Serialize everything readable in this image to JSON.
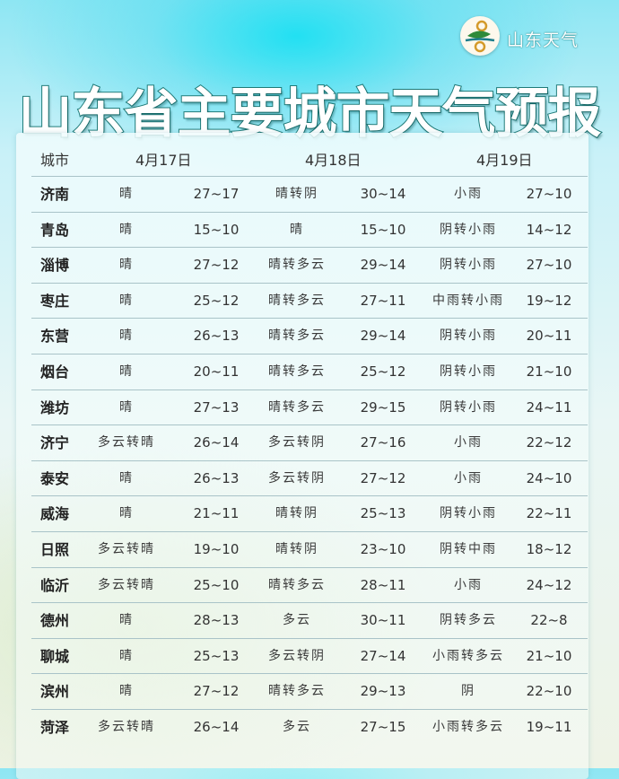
{
  "brand": {
    "name": "山东天气",
    "logo": "shandong-weather-logo"
  },
  "title": "山东省主要城市天气预报",
  "columns": {
    "city": "城市",
    "dates": [
      "4月17日",
      "4月18日",
      "4月19日"
    ]
  },
  "rows": [
    {
      "city": "济南",
      "d1": [
        "晴",
        "27~17"
      ],
      "d2": [
        "晴转阴",
        "30~14"
      ],
      "d3": [
        "小雨",
        "27~10"
      ]
    },
    {
      "city": "青岛",
      "d1": [
        "晴",
        "15~10"
      ],
      "d2": [
        "晴",
        "15~10"
      ],
      "d3": [
        "阴转小雨",
        "14~12"
      ]
    },
    {
      "city": "淄博",
      "d1": [
        "晴",
        "27~12"
      ],
      "d2": [
        "晴转多云",
        "29~14"
      ],
      "d3": [
        "阴转小雨",
        "27~10"
      ]
    },
    {
      "city": "枣庄",
      "d1": [
        "晴",
        "25~12"
      ],
      "d2": [
        "晴转多云",
        "27~11"
      ],
      "d3": [
        "中雨转小雨",
        "19~12"
      ]
    },
    {
      "city": "东营",
      "d1": [
        "晴",
        "26~13"
      ],
      "d2": [
        "晴转多云",
        "29~14"
      ],
      "d3": [
        "阴转小雨",
        "20~11"
      ]
    },
    {
      "city": "烟台",
      "d1": [
        "晴",
        "20~11"
      ],
      "d2": [
        "晴转多云",
        "25~12"
      ],
      "d3": [
        "阴转小雨",
        "21~10"
      ]
    },
    {
      "city": "潍坊",
      "d1": [
        "晴",
        "27~13"
      ],
      "d2": [
        "晴转多云",
        "29~15"
      ],
      "d3": [
        "阴转小雨",
        "24~11"
      ]
    },
    {
      "city": "济宁",
      "d1": [
        "多云转晴",
        "26~14"
      ],
      "d2": [
        "多云转阴",
        "27~16"
      ],
      "d3": [
        "小雨",
        "22~12"
      ]
    },
    {
      "city": "泰安",
      "d1": [
        "晴",
        "26~13"
      ],
      "d2": [
        "多云转阴",
        "27~12"
      ],
      "d3": [
        "小雨",
        "24~10"
      ]
    },
    {
      "city": "威海",
      "d1": [
        "晴",
        "21~11"
      ],
      "d2": [
        "晴转阴",
        "25~13"
      ],
      "d3": [
        "阴转小雨",
        "22~11"
      ]
    },
    {
      "city": "日照",
      "d1": [
        "多云转晴",
        "19~10"
      ],
      "d2": [
        "晴转阴",
        "23~10"
      ],
      "d3": [
        "阴转中雨",
        "18~12"
      ]
    },
    {
      "city": "临沂",
      "d1": [
        "多云转晴",
        "25~10"
      ],
      "d2": [
        "晴转多云",
        "28~11"
      ],
      "d3": [
        "小雨",
        "24~12"
      ]
    },
    {
      "city": "德州",
      "d1": [
        "晴",
        "28~13"
      ],
      "d2": [
        "多云",
        "30~11"
      ],
      "d3": [
        "阴转多云",
        "22~8"
      ]
    },
    {
      "city": "聊城",
      "d1": [
        "晴",
        "25~13"
      ],
      "d2": [
        "多云转阴",
        "27~14"
      ],
      "d3": [
        "小雨转多云",
        "21~10"
      ]
    },
    {
      "city": "滨州",
      "d1": [
        "晴",
        "27~12"
      ],
      "d2": [
        "晴转多云",
        "29~13"
      ],
      "d3": [
        "阴",
        "22~10"
      ]
    },
    {
      "city": "菏泽",
      "d1": [
        "多云转晴",
        "26~14"
      ],
      "d2": [
        "多云",
        "27~15"
      ],
      "d3": [
        "小雨转多云",
        "19~11"
      ]
    }
  ]
}
